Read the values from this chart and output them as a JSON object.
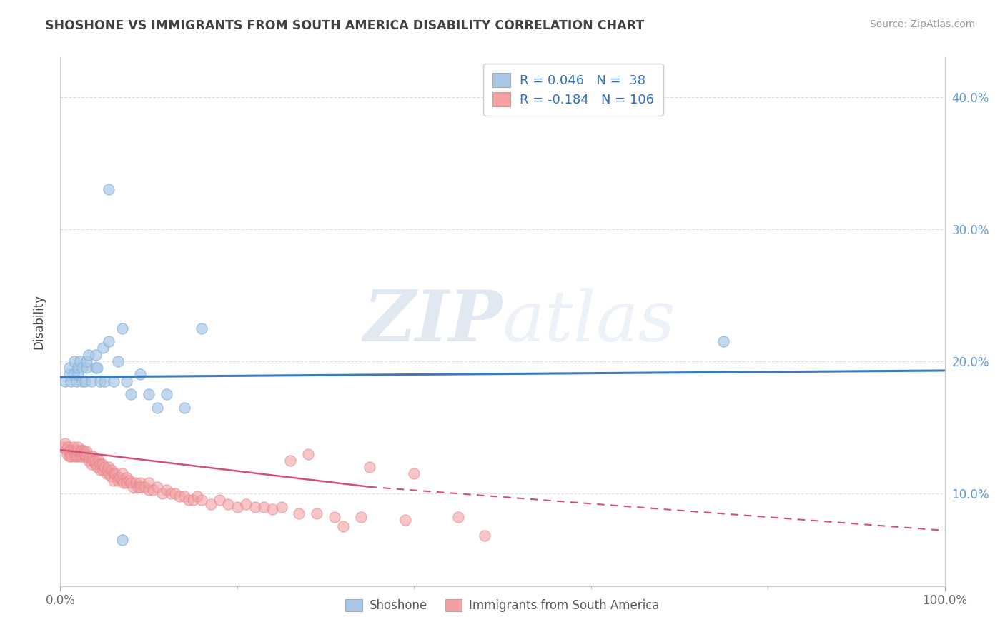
{
  "title": "SHOSHONE VS IMMIGRANTS FROM SOUTH AMERICA DISABILITY CORRELATION CHART",
  "source": "Source: ZipAtlas.com",
  "ylabel": "Disability",
  "xlim": [
    0.0,
    1.0
  ],
  "ylim": [
    0.03,
    0.43
  ],
  "yticks": [
    0.1,
    0.2,
    0.3,
    0.4
  ],
  "ytick_labels": [
    "10.0%",
    "20.0%",
    "30.0%",
    "40.0%"
  ],
  "xticks": [
    0.0,
    1.0
  ],
  "xtick_labels": [
    "0.0%",
    "100.0%"
  ],
  "legend_labels": [
    "Shoshone",
    "Immigrants from South America"
  ],
  "shoshone_R": "0.046",
  "shoshone_N": "38",
  "immigrants_R": "-0.184",
  "immigrants_N": "106",
  "shoshone_color": "#a8c8e8",
  "immigrants_color": "#f4a0a0",
  "shoshone_line_color": "#3a7abf",
  "immigrants_line_color": "#d45070",
  "background_color": "#ffffff",
  "watermark_zip": "ZIP",
  "watermark_atlas": "atlas",
  "shoshone_x": [
    0.005,
    0.01,
    0.01,
    0.012,
    0.015,
    0.016,
    0.018,
    0.02,
    0.02,
    0.022,
    0.025,
    0.025,
    0.028,
    0.03,
    0.03,
    0.032,
    0.035,
    0.04,
    0.04,
    0.042,
    0.045,
    0.048,
    0.05,
    0.055,
    0.06,
    0.065,
    0.07,
    0.075,
    0.08,
    0.09,
    0.1,
    0.11,
    0.12,
    0.14,
    0.16,
    0.75,
    0.055,
    0.07
  ],
  "shoshone_y": [
    0.185,
    0.19,
    0.195,
    0.185,
    0.19,
    0.2,
    0.185,
    0.19,
    0.195,
    0.2,
    0.185,
    0.195,
    0.185,
    0.195,
    0.2,
    0.205,
    0.185,
    0.195,
    0.205,
    0.195,
    0.185,
    0.21,
    0.185,
    0.215,
    0.185,
    0.2,
    0.225,
    0.185,
    0.175,
    0.19,
    0.175,
    0.165,
    0.175,
    0.165,
    0.225,
    0.215,
    0.33,
    0.065
  ],
  "immigrants_x": [
    0.003,
    0.005,
    0.007,
    0.008,
    0.009,
    0.01,
    0.01,
    0.012,
    0.012,
    0.013,
    0.015,
    0.015,
    0.016,
    0.017,
    0.018,
    0.018,
    0.019,
    0.02,
    0.02,
    0.022,
    0.022,
    0.023,
    0.024,
    0.025,
    0.025,
    0.026,
    0.027,
    0.028,
    0.028,
    0.03,
    0.03,
    0.032,
    0.033,
    0.035,
    0.035,
    0.037,
    0.038,
    0.04,
    0.04,
    0.042,
    0.043,
    0.045,
    0.045,
    0.047,
    0.048,
    0.05,
    0.052,
    0.053,
    0.055,
    0.055,
    0.057,
    0.058,
    0.06,
    0.06,
    0.062,
    0.065,
    0.065,
    0.068,
    0.07,
    0.07,
    0.072,
    0.075,
    0.075,
    0.078,
    0.08,
    0.082,
    0.085,
    0.088,
    0.09,
    0.09,
    0.095,
    0.1,
    0.1,
    0.105,
    0.11,
    0.115,
    0.12,
    0.125,
    0.13,
    0.135,
    0.14,
    0.145,
    0.15,
    0.155,
    0.16,
    0.17,
    0.18,
    0.19,
    0.2,
    0.21,
    0.22,
    0.23,
    0.24,
    0.25,
    0.27,
    0.29,
    0.31,
    0.34,
    0.39,
    0.45,
    0.35,
    0.4,
    0.28,
    0.26,
    0.32,
    0.48
  ],
  "immigrants_y": [
    0.135,
    0.138,
    0.133,
    0.13,
    0.135,
    0.132,
    0.128,
    0.133,
    0.13,
    0.128,
    0.132,
    0.135,
    0.13,
    0.128,
    0.133,
    0.13,
    0.128,
    0.132,
    0.135,
    0.13,
    0.128,
    0.132,
    0.13,
    0.128,
    0.133,
    0.13,
    0.132,
    0.128,
    0.13,
    0.128,
    0.132,
    0.125,
    0.128,
    0.125,
    0.122,
    0.128,
    0.125,
    0.122,
    0.125,
    0.12,
    0.125,
    0.122,
    0.118,
    0.122,
    0.118,
    0.12,
    0.115,
    0.118,
    0.115,
    0.12,
    0.113,
    0.118,
    0.115,
    0.11,
    0.115,
    0.112,
    0.11,
    0.112,
    0.11,
    0.115,
    0.108,
    0.112,
    0.108,
    0.11,
    0.108,
    0.105,
    0.108,
    0.105,
    0.108,
    0.105,
    0.105,
    0.103,
    0.108,
    0.103,
    0.105,
    0.1,
    0.103,
    0.1,
    0.1,
    0.098,
    0.098,
    0.095,
    0.095,
    0.098,
    0.095,
    0.092,
    0.095,
    0.092,
    0.09,
    0.092,
    0.09,
    0.09,
    0.088,
    0.09,
    0.085,
    0.085,
    0.082,
    0.082,
    0.08,
    0.082,
    0.12,
    0.115,
    0.13,
    0.125,
    0.075,
    0.068
  ]
}
